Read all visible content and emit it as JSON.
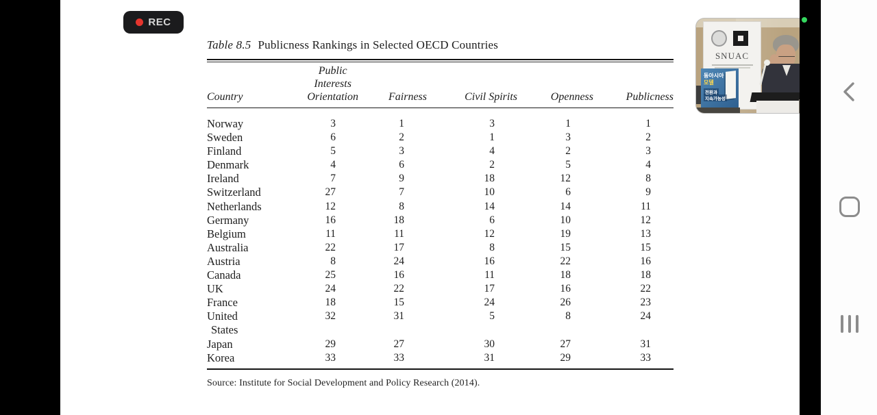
{
  "rec": {
    "label": "REC",
    "chip_color": "#1b1b1d",
    "dot_color": "#e5352e"
  },
  "status": {
    "recording_indicator_color": "#35d85f"
  },
  "table": {
    "title_label": "Table 8.5",
    "title_text": "Publicness Rankings in Selected OECD Countries",
    "columns": [
      {
        "lines": [
          "Country"
        ]
      },
      {
        "lines": [
          "Public",
          "Interests",
          "Orientation"
        ]
      },
      {
        "lines": [
          "Fairness"
        ]
      },
      {
        "lines": [
          "Civil Spirits"
        ]
      },
      {
        "lines": [
          "Openness"
        ]
      },
      {
        "lines": [
          "Publicness"
        ]
      }
    ],
    "rows": [
      {
        "country": "Norway",
        "values": [
          3,
          1,
          3,
          1,
          1
        ]
      },
      {
        "country": "Sweden",
        "values": [
          6,
          2,
          1,
          3,
          2
        ]
      },
      {
        "country": "Finland",
        "values": [
          5,
          3,
          4,
          2,
          3
        ]
      },
      {
        "country": "Denmark",
        "values": [
          4,
          6,
          2,
          5,
          4
        ]
      },
      {
        "country": "Ireland",
        "values": [
          7,
          9,
          18,
          12,
          8
        ]
      },
      {
        "country": "Switzerland",
        "values": [
          27,
          7,
          10,
          6,
          9
        ]
      },
      {
        "country": "Netherlands",
        "values": [
          12,
          8,
          14,
          14,
          11
        ]
      },
      {
        "country": "Germany",
        "values": [
          16,
          18,
          6,
          10,
          12
        ]
      },
      {
        "country": "Belgium",
        "values": [
          11,
          11,
          12,
          19,
          13
        ]
      },
      {
        "country": "Australia",
        "values": [
          22,
          17,
          8,
          15,
          15
        ]
      },
      {
        "country": "Austria",
        "values": [
          8,
          24,
          16,
          22,
          16
        ]
      },
      {
        "country": "Canada",
        "values": [
          25,
          16,
          11,
          18,
          18
        ]
      },
      {
        "country": "UK",
        "values": [
          24,
          22,
          17,
          16,
          22
        ]
      },
      {
        "country": "France",
        "values": [
          18,
          15,
          24,
          26,
          23
        ]
      },
      {
        "country": "United",
        "country_line2": "States",
        "values": [
          32,
          31,
          5,
          8,
          24
        ]
      },
      {
        "country": "Japan",
        "values": [
          29,
          27,
          30,
          27,
          31
        ]
      },
      {
        "country": "Korea",
        "values": [
          33,
          33,
          31,
          29,
          33
        ]
      }
    ],
    "source": "Source: Institute for Social Development and Policy Research (2014)."
  },
  "webcam": {
    "banner_title": "SNUAC",
    "poster_lines": [
      "동아시아",
      "모델",
      "전환과",
      "지속가능성"
    ]
  },
  "nav_colors": {
    "icon_gray": "#8c8c8c"
  }
}
